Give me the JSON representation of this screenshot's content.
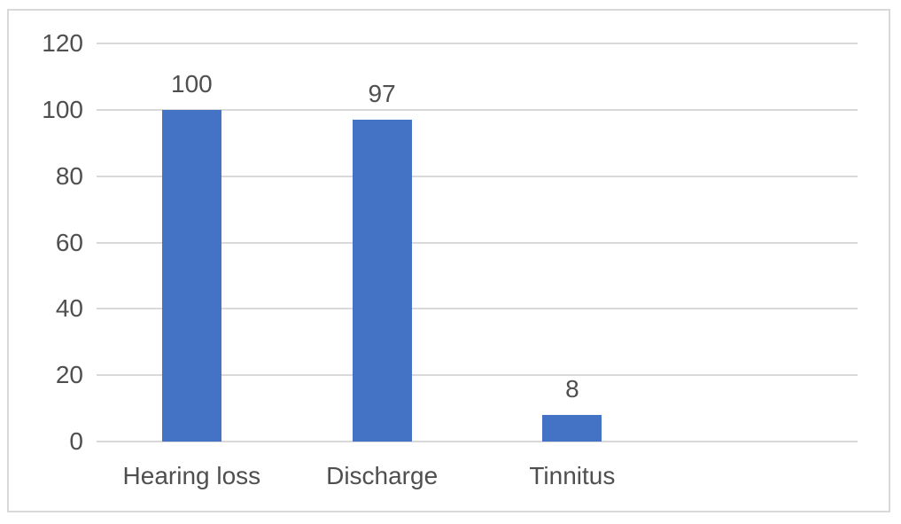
{
  "chart_data": {
    "type": "bar",
    "title": "",
    "xlabel": "",
    "ylabel": "",
    "categories": [
      "Hearing loss",
      "Discharge",
      "Tinnitus"
    ],
    "values": [
      100,
      97,
      8
    ],
    "data_labels": [
      "100",
      "97",
      "8"
    ],
    "ylim": [
      0,
      120
    ],
    "yticks": [
      0,
      20,
      40,
      60,
      80,
      100,
      120
    ],
    "grid": "horizontal-only",
    "legend": "none",
    "category_slots": 4,
    "colors": {
      "bar": "#4472c4",
      "gridline": "#d9d9d9",
      "frame_border": "#d9d9d9",
      "text": "#4f4f4f",
      "background": "#ffffff"
    }
  }
}
